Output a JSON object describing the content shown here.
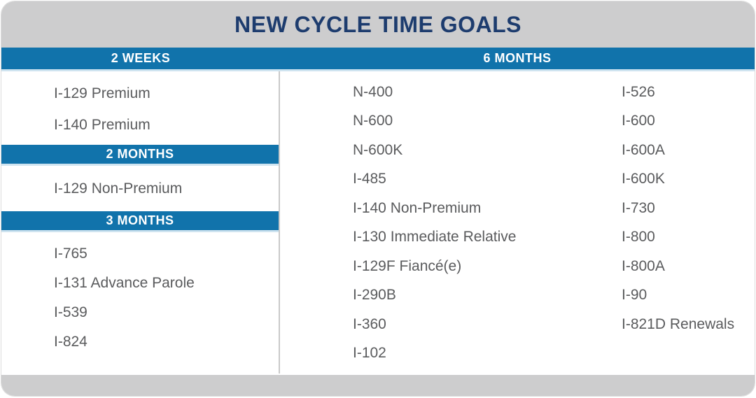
{
  "title": "NEW CYCLE TIME GOALS",
  "colors": {
    "band_blue": "#1173ab",
    "band_light_edge": "#cfe4f0",
    "header_gray": "#cdcdce",
    "title_navy": "#1d3c6e",
    "item_text_gray": "#5a5b5d",
    "divider_gray": "#c9c9c9"
  },
  "sections": {
    "two_weeks": {
      "label": "2 WEEKS",
      "items": [
        "I-129 Premium",
        "I-140 Premium"
      ]
    },
    "two_months": {
      "label": "2 MONTHS",
      "items": [
        "I-129 Non-Premium"
      ]
    },
    "three_months": {
      "label": "3 MONTHS",
      "items": [
        "I-765",
        "I-131 Advance Parole",
        "I-539",
        "I-824"
      ]
    },
    "six_months": {
      "label": "6 MONTHS",
      "col1": [
        "N-400",
        "N-600",
        "N-600K",
        "I-485",
        "I-140 Non-Premium",
        "I-130 Immediate Relative",
        "I-129F Fiancé(e)",
        "I-290B",
        "I-360",
        "I-102"
      ],
      "col2": [
        "I-526",
        "I-600",
        "I-600A",
        "I-600K",
        "I-730",
        "I-800",
        "I-800A",
        "I-90",
        "I-821D Renewals"
      ]
    }
  }
}
